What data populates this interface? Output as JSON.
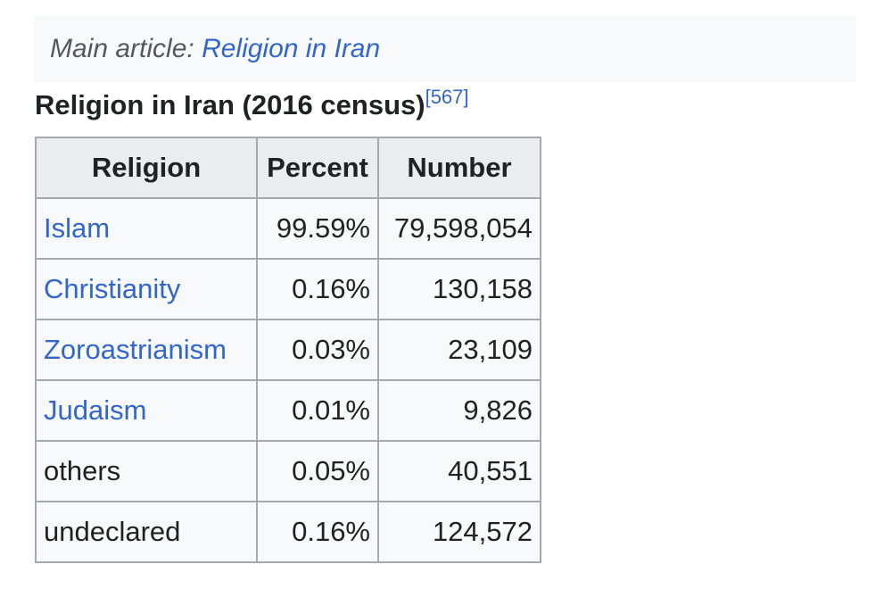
{
  "hatnote": {
    "prefix": "Main article: ",
    "link": "Religion in Iran"
  },
  "caption": {
    "title": "Religion in Iran (2016 census)",
    "ref": "[567]"
  },
  "table": {
    "headers": [
      "Religion",
      "Percent",
      "Number"
    ],
    "rows": [
      {
        "religion": "Islam",
        "percent": "99.59%",
        "number": "79,598,054",
        "is_link": true
      },
      {
        "religion": "Christianity",
        "percent": "0.16%",
        "number": "130,158",
        "is_link": true
      },
      {
        "religion": "Zoroastrianism",
        "percent": "0.03%",
        "number": "23,109",
        "is_link": true
      },
      {
        "religion": "Judaism",
        "percent": "0.01%",
        "number": "9,826",
        "is_link": true
      },
      {
        "religion": "others",
        "percent": "0.05%",
        "number": "40,551",
        "is_link": false
      },
      {
        "religion": "undeclared",
        "percent": "0.16%",
        "number": "124,572",
        "is_link": false
      }
    ]
  },
  "colors": {
    "link": "#3366cc",
    "text": "#202122",
    "header_bg": "#eaecf0",
    "cell_bg": "#f8f9fa",
    "border": "#a2a9b1"
  }
}
